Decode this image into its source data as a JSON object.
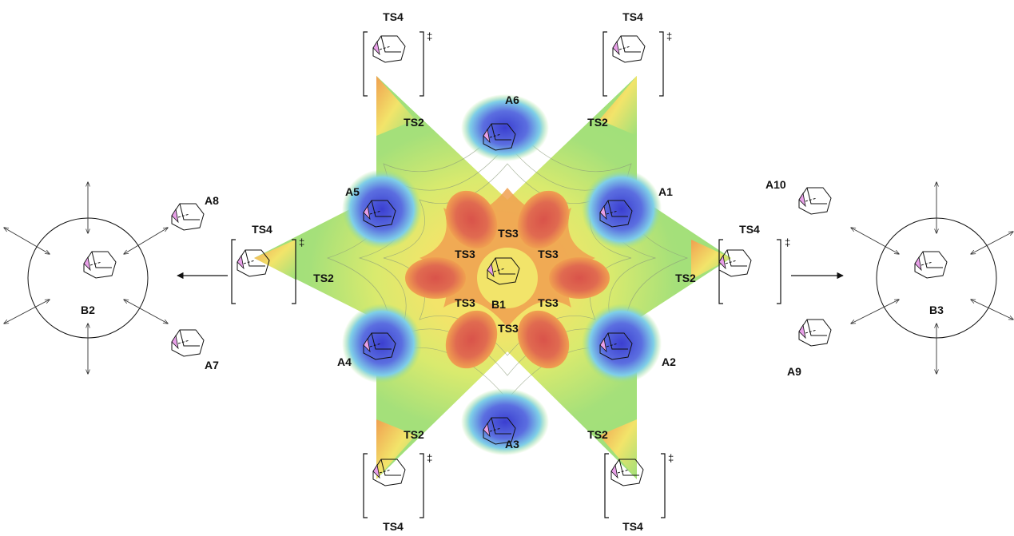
{
  "labels": {
    "ts4_top_left": "TS4",
    "ts4_top_right": "TS4",
    "ts4_left": "TS4",
    "ts4_right": "TS4",
    "ts4_bottom_left": "TS4",
    "ts4_bottom_right": "TS4",
    "ts2_upper_left": "TS2",
    "ts2_upper_right": "TS2",
    "ts2_left": "TS2",
    "ts2_right": "TS2",
    "ts2_lower_left": "TS2",
    "ts2_lower_right": "TS2",
    "ts3_top": "TS3",
    "ts3_upper_left": "TS3",
    "ts3_upper_right": "TS3",
    "ts3_lower_left": "TS3",
    "ts3_lower_right": "TS3",
    "ts3_bottom": "TS3",
    "a1": "A1",
    "a2": "A2",
    "a3": "A3",
    "a4": "A4",
    "a5": "A5",
    "a6": "A6",
    "a7": "A7",
    "a8": "A8",
    "a9": "A9",
    "a10": "A10",
    "b1": "B1",
    "b2": "B2",
    "b3": "B3",
    "dagger": "‡"
  },
  "colors": {
    "deep_red": "#d9534a",
    "orange": "#f0a050",
    "yellow": "#f2e46a",
    "green": "#9ee07a",
    "cyan": "#6fd8e6",
    "blue": "#4a5ad8",
    "pink": "#e8a0e8"
  }
}
